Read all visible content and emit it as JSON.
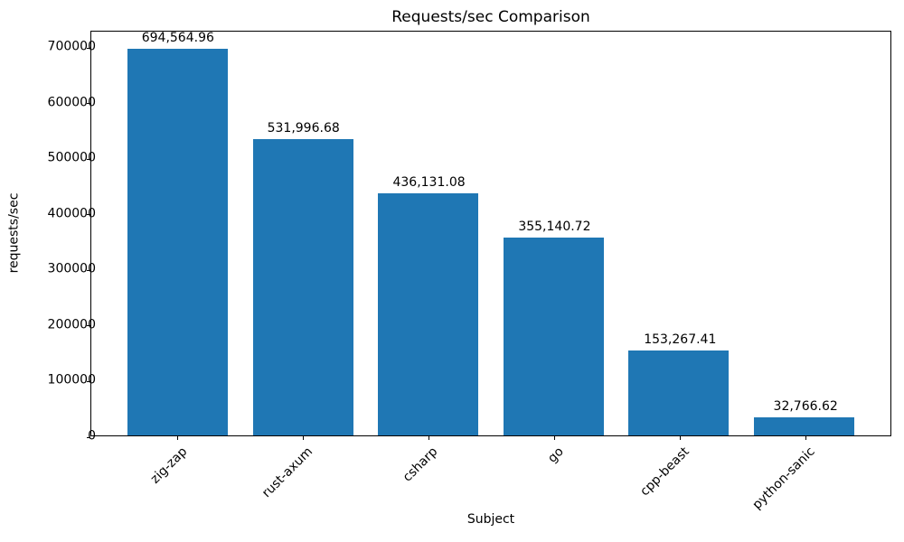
{
  "figure": {
    "background_color": "#ffffff",
    "text_color": "#000000"
  },
  "chart_data": {
    "type": "bar",
    "title": "Requests/sec Comparison",
    "xlabel": "Subject",
    "ylabel": "requests/sec",
    "categories": [
      "zig-zap",
      "rust-axum",
      "csharp",
      "go",
      "cpp-beast",
      "python-sanic"
    ],
    "values": [
      694564.96,
      531996.68,
      436131.08,
      355140.72,
      153267.41,
      32766.62
    ],
    "value_labels": [
      "694,564.96",
      "531,996.68",
      "436,131.08",
      "355,140.72",
      "153,267.41",
      "32,766.62"
    ],
    "yticks": [
      0,
      100000,
      200000,
      300000,
      400000,
      500000,
      600000,
      700000
    ],
    "ylim": [
      0,
      729293
    ],
    "bar_color": "#1f77b4",
    "grid": false,
    "legend": null,
    "xtick_rotation_deg": 45
  }
}
